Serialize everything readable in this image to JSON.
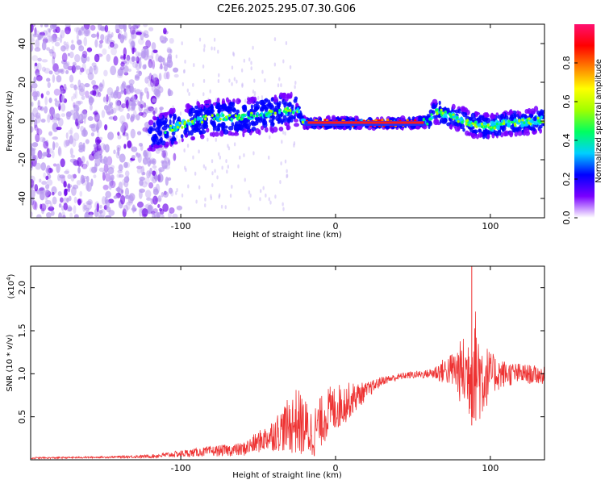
{
  "chart_data": [
    {
      "type": "heatmap",
      "title": "C2E6.2025.295.07.30.G06",
      "xlabel": "Height of straight line (km)",
      "ylabel": "Frequency (Hz)",
      "xlim": [
        -197,
        135
      ],
      "ylim": [
        -50,
        50
      ],
      "xticks": [
        -100,
        0,
        100
      ],
      "yticks": [
        -40,
        -20,
        0,
        20,
        40
      ],
      "colorbar": {
        "label": "Normalized spectral amplitude",
        "range": [
          0,
          1
        ],
        "ticks": [
          "0.0",
          "0.2",
          "0.4",
          "0.6",
          "0.8"
        ],
        "colormap": [
          "#ffffff",
          "#7a00ff",
          "#0000ff",
          "#00d0ff",
          "#00ff60",
          "#a0ff00",
          "#ffff00",
          "#ff8000",
          "#ff0000",
          "#ff1070"
        ]
      },
      "ridge": {
        "x": [
          -120,
          -100,
          -80,
          -60,
          -40,
          -25,
          -20,
          0,
          20,
          55,
          60,
          65,
          70,
          80,
          90,
          100,
          110,
          120,
          135
        ],
        "freq": [
          -7,
          -2,
          2,
          2,
          4,
          6,
          -1,
          -1,
          -1,
          -1,
          0,
          5,
          4,
          1,
          -2,
          -3,
          -1,
          -1,
          1
        ]
      },
      "noise_region_x": [
        -197,
        -105
      ]
    },
    {
      "type": "line",
      "xlabel": "Height of straight line (km)",
      "ylabel": "SNR (10 * v/v)",
      "y_multiplier": "(x10",
      "y_multiplier_exp": "4",
      "xlim": [
        -197,
        135
      ],
      "ylim": [
        0,
        2.25
      ],
      "xticks": [
        -100,
        0,
        100
      ],
      "yticks": [
        "0.5",
        "1.0",
        "1.5",
        "2.0"
      ],
      "color": "#ee3333",
      "envelope": {
        "x": [
          -197,
          -150,
          -120,
          -100,
          -80,
          -60,
          -45,
          -35,
          -25,
          -15,
          -5,
          5,
          20,
          30,
          45,
          60,
          75,
          85,
          90,
          95,
          100,
          110,
          120,
          135
        ],
        "mean": [
          0.02,
          0.03,
          0.04,
          0.07,
          0.1,
          0.12,
          0.25,
          0.35,
          0.45,
          0.3,
          0.55,
          0.65,
          0.8,
          0.92,
          0.98,
          1.0,
          1.05,
          1.0,
          1.1,
          0.95,
          1.0,
          1.0,
          1.0,
          0.98
        ],
        "spread": [
          0.01,
          0.01,
          0.02,
          0.04,
          0.06,
          0.08,
          0.15,
          0.25,
          0.4,
          0.3,
          0.3,
          0.25,
          0.1,
          0.05,
          0.04,
          0.05,
          0.2,
          0.5,
          0.7,
          0.5,
          0.25,
          0.15,
          0.12,
          0.1
        ]
      }
    }
  ]
}
